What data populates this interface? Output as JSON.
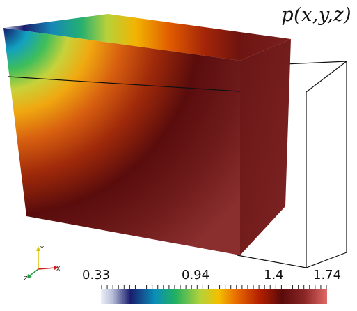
{
  "plot": {
    "field_label": "p(x,y,z)"
  },
  "colorbar": {
    "tick_labels": [
      "0.33",
      "0.94",
      "1.4",
      "1.74"
    ],
    "colormap": [
      "#e8ecf5",
      "#1a1d6e",
      "#00a0c0",
      "#2fbf5a",
      "#b8d23a",
      "#f4b000",
      "#e45a00",
      "#b52000",
      "#5a0a0a",
      "#7a1c1c",
      "#d6605a"
    ]
  },
  "axes_triad": {
    "labels": [
      "Y",
      "X",
      "Z"
    ],
    "colors": {
      "x": "#d42020",
      "y": "#d4c400",
      "z": "#20a040"
    }
  }
}
